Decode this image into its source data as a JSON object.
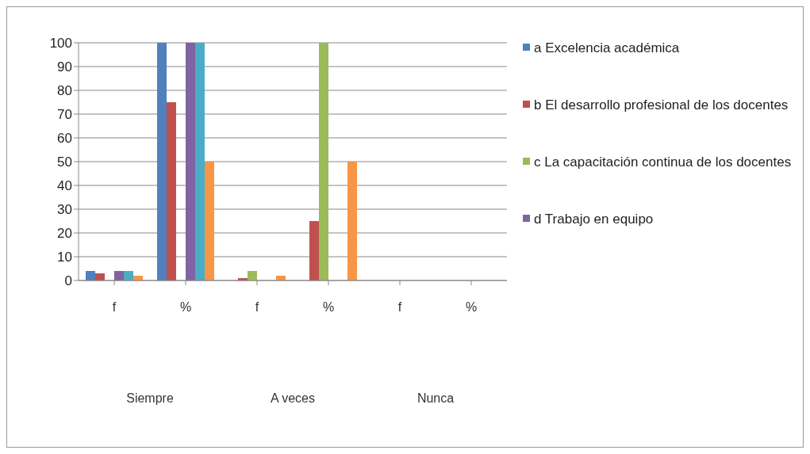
{
  "chart_data": {
    "type": "bar",
    "categories": [
      "f",
      "%",
      "f",
      "%",
      "f",
      "%"
    ],
    "series": [
      {
        "name": "a Excelencia académica",
        "color": "#4f81bd",
        "values": [
          4,
          100,
          0,
          0,
          0,
          0
        ]
      },
      {
        "name": "b El desarrollo profesional de los docentes",
        "color": "#c0504d",
        "values": [
          3,
          75,
          1,
          25,
          0,
          0
        ]
      },
      {
        "name": "c La capacitación continua de los docentes",
        "color": "#9bbb59",
        "values": [
          0,
          0,
          4,
          100,
          0,
          0
        ]
      },
      {
        "name": "d Trabajo en equipo",
        "color": "#8064a2",
        "values": [
          4,
          100,
          0,
          0,
          0,
          0
        ]
      },
      {
        "color": "#4bacc6",
        "values": [
          4,
          100,
          0,
          0,
          0,
          0
        ]
      },
      {
        "color": "#f79646",
        "values": [
          2,
          50,
          2,
          50,
          0,
          0
        ]
      }
    ],
    "annotations": [
      "Siempre",
      "A veces",
      "Nunca"
    ],
    "ylim": [
      0,
      100
    ],
    "yticks": [
      0,
      10,
      20,
      30,
      40,
      50,
      60,
      70,
      80,
      90,
      100
    ],
    "grid": "y",
    "legend": "right"
  }
}
